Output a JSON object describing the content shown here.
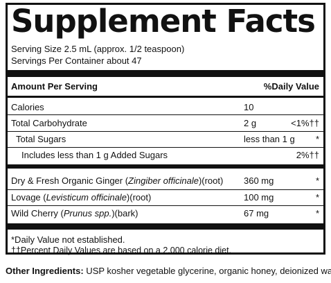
{
  "title": "Supplement Facts",
  "serving_size": "Serving Size 2.5 mL (approx. 1/2 teaspoon)",
  "servings_per_container": "Servings Per Container about 47",
  "header": {
    "amount_label": "Amount Per Serving",
    "dv_label": "%Daily Value"
  },
  "rows": [
    {
      "name": "Calories",
      "amount": "10",
      "dv": ""
    },
    {
      "name": "Total Carbohydrate",
      "amount": "2 g",
      "dv": "<1%††"
    },
    {
      "name": "Total Sugars",
      "amount": "less than 1 g",
      "dv": "*"
    },
    {
      "name": "Includes less than 1 g Added Sugars",
      "amount": "",
      "dv": "2%††"
    }
  ],
  "herbs": [
    {
      "pre": "Dry & Fresh Organic Ginger (",
      "latin": "Zingiber officinale",
      "post": ")(root)",
      "amount": "360 mg",
      "dv": "*"
    },
    {
      "pre": "Lovage (",
      "latin": "Levisticum officinale",
      "post": ")(root)",
      "amount": "100 mg",
      "dv": "*"
    },
    {
      "pre": "Wild Cherry (",
      "latin": "Prunus spp.",
      "post": ")(bark)",
      "amount": "67 mg",
      "dv": "*"
    }
  ],
  "footnotes": {
    "daily_value": "*Daily Value not established.",
    "percent_dv": "††Percent Daily Values are based on a 2,000 calorie diet."
  },
  "other_ingredients": {
    "label": "Other Ingredients:",
    "text": " USP kosher vegetable glycerine, organic honey, deionized water."
  }
}
